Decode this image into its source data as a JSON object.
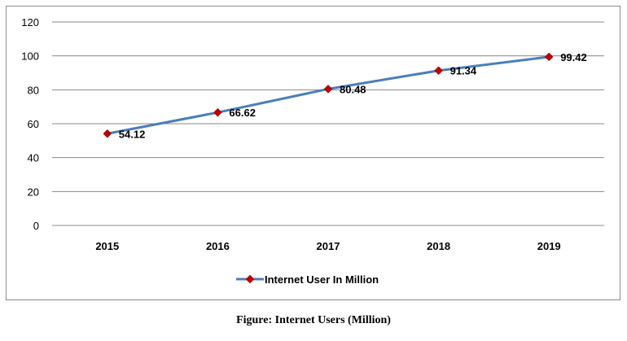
{
  "chart_data": {
    "type": "line",
    "categories": [
      "2015",
      "2016",
      "2017",
      "2018",
      "2019"
    ],
    "series": [
      {
        "name": "Internet User In Million",
        "values": [
          54.12,
          66.62,
          80.48,
          91.34,
          99.42
        ],
        "data_labels": [
          "54.12",
          "66.62",
          "80.48",
          "91.34",
          "99.42"
        ],
        "line_color": "#4a7ebb",
        "marker_color": "#c00000",
        "marker": "diamond"
      }
    ],
    "ylim": [
      0,
      120
    ],
    "yticks": [
      "0",
      "20",
      "40",
      "60",
      "80",
      "100",
      "120"
    ],
    "grid": true,
    "legend_position": "bottom-center"
  },
  "caption": "Figure: Internet Users (Million)"
}
